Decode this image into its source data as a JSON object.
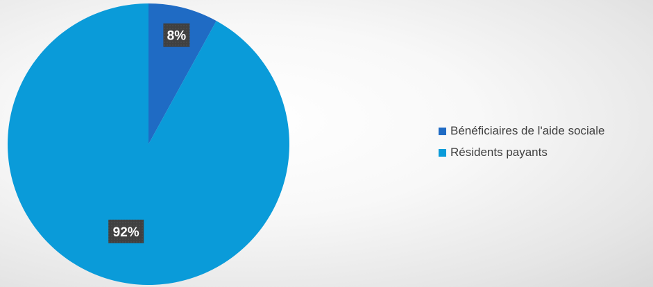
{
  "colors": {
    "series_0": "#1f6bc4",
    "series_1": "#0a9bd9",
    "label_bg": "#404040",
    "label_text": "#ffffff"
  },
  "chart_data": {
    "type": "pie",
    "categories": [
      "Bénéficiaires de l'aide sociale",
      "Résidents payants"
    ],
    "values": [
      8,
      92
    ],
    "data_labels": [
      "8%",
      "92%"
    ],
    "legend": "right",
    "title": ""
  }
}
